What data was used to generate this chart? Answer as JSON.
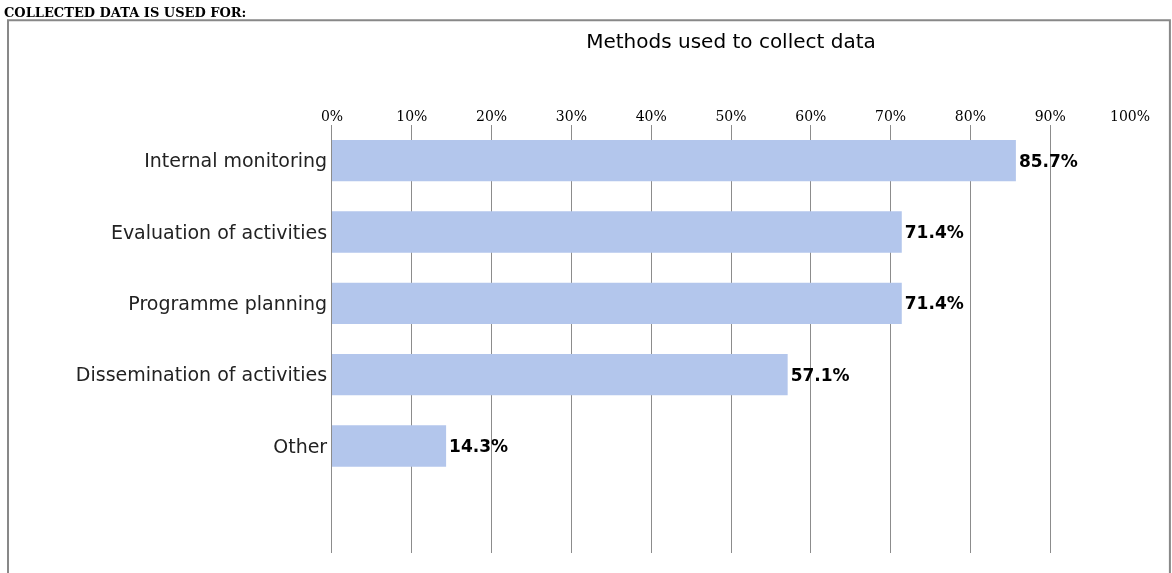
{
  "chart_data": {
    "type": "bar",
    "orientation": "horizontal",
    "title": "Methods used to collect data",
    "annotations": [
      "COLLECTED DATA IS USED FOR:"
    ],
    "categories": [
      "Internal monitoring",
      "Evaluation of activities",
      "Programme planning",
      "Dissemination of activities",
      "Other",
      null
    ],
    "values": [
      85.7,
      71.4,
      71.4,
      57.1,
      14.3,
      null
    ],
    "value_labels": [
      "85.7%",
      "71.4%",
      "71.4%",
      "57.1%",
      "14.3%",
      null
    ],
    "color": "#b3c6ec",
    "xlim": [
      0,
      100
    ],
    "xticks": [
      {
        "value": 0,
        "label": "0%"
      },
      {
        "value": 10,
        "label": "10%"
      },
      {
        "value": 20,
        "label": "20%"
      },
      {
        "value": 30,
        "label": "30%"
      },
      {
        "value": 40,
        "label": "40%"
      },
      {
        "value": 50,
        "label": "50%"
      },
      {
        "value": 60,
        "label": "60%"
      },
      {
        "value": 70,
        "label": "70%"
      },
      {
        "value": 80,
        "label": "80%"
      },
      {
        "value": 90,
        "label": "90%"
      },
      {
        "value": 100,
        "label": "100%"
      }
    ],
    "grid": "x",
    "legend": false
  }
}
